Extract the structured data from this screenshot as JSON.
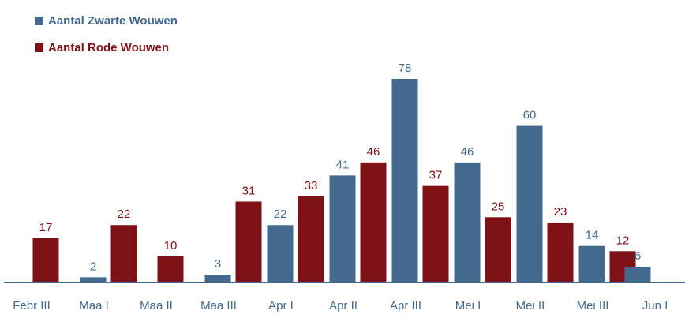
{
  "chart_data": {
    "type": "bar",
    "categories": [
      "Febr III",
      "Maa I",
      "Maa II",
      "Maa III",
      "Apr I",
      "Apr II",
      "Apr III",
      "Mei  I",
      "Mei  II",
      "Mei  III",
      "Jun I"
    ],
    "series": [
      {
        "name": "Aantal Zwarte Wouwen",
        "color": "#44698f",
        "values": [
          null,
          2,
          null,
          3,
          22,
          41,
          78,
          46,
          60,
          14,
          6
        ]
      },
      {
        "name": "Aantal Rode Wouwen",
        "color": "#7e1216",
        "values": [
          17,
          22,
          10,
          31,
          33,
          46,
          37,
          25,
          23,
          12,
          null
        ]
      }
    ],
    "ylim": [
      0,
      78
    ],
    "grid": false,
    "legend_placement": "top-left",
    "axis_color": "#44698f"
  }
}
